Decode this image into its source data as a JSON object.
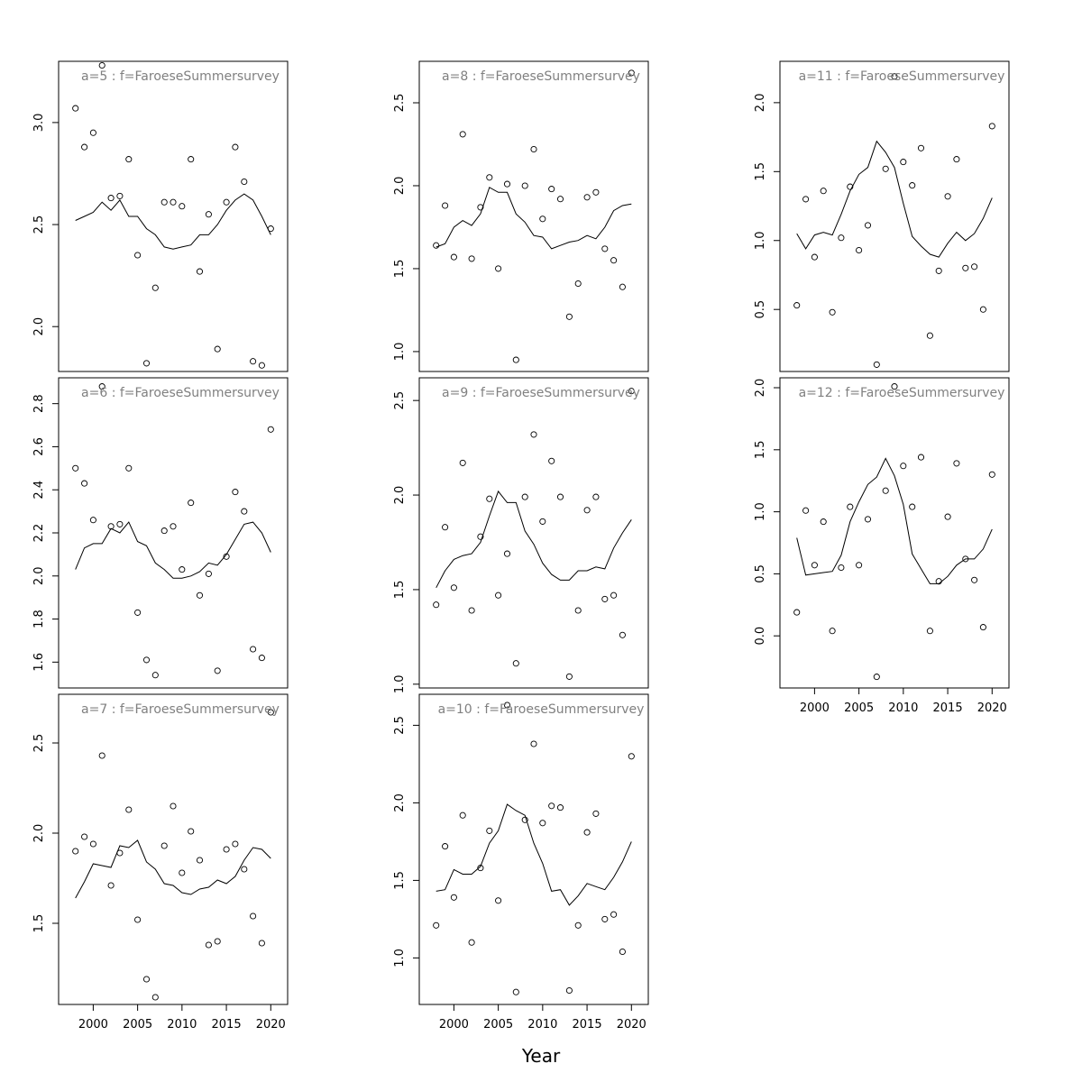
{
  "xlabel": "Year",
  "chart_data": [
    {
      "type": "scatter",
      "title": "a=5 : f=FaroeseSummersurvey",
      "yticks": [
        2.0,
        2.5,
        3.0
      ],
      "ylim": [
        1.78,
        3.3
      ],
      "x": [
        1998,
        1999,
        2000,
        2001,
        2002,
        2003,
        2004,
        2005,
        2006,
        2007,
        2008,
        2009,
        2010,
        2011,
        2012,
        2013,
        2014,
        2015,
        2016,
        2017,
        2018,
        2019,
        2020
      ],
      "observed": [
        3.07,
        2.88,
        2.95,
        3.28,
        2.63,
        2.64,
        2.82,
        2.35,
        1.82,
        2.19,
        2.61,
        2.61,
        2.59,
        2.82,
        2.27,
        2.55,
        1.89,
        2.61,
        2.88,
        2.71,
        1.83,
        1.81,
        2.48
      ],
      "fitted": [
        2.52,
        2.54,
        2.56,
        2.61,
        2.57,
        2.62,
        2.54,
        2.54,
        2.48,
        2.45,
        2.39,
        2.38,
        2.39,
        2.4,
        2.45,
        2.45,
        2.5,
        2.57,
        2.62,
        2.65,
        2.62,
        2.54,
        2.45
      ]
    },
    {
      "type": "scatter",
      "title": "a=6 : f=FaroeseSummersurvey",
      "yticks": [
        1.6,
        1.8,
        2.0,
        2.2,
        2.4,
        2.6,
        2.8
      ],
      "ylim": [
        1.48,
        2.92
      ],
      "x": [
        1998,
        1999,
        2000,
        2001,
        2002,
        2003,
        2004,
        2005,
        2006,
        2007,
        2008,
        2009,
        2010,
        2011,
        2012,
        2013,
        2014,
        2015,
        2016,
        2017,
        2018,
        2019,
        2020
      ],
      "observed": [
        2.5,
        2.43,
        2.26,
        2.88,
        2.23,
        2.24,
        2.5,
        1.83,
        1.61,
        1.54,
        2.21,
        2.23,
        2.03,
        2.34,
        1.91,
        2.01,
        1.56,
        2.09,
        2.39,
        2.3,
        1.66,
        1.62,
        2.68
      ],
      "fitted": [
        2.03,
        2.13,
        2.15,
        2.15,
        2.22,
        2.2,
        2.25,
        2.16,
        2.14,
        2.06,
        2.03,
        1.99,
        1.99,
        2.0,
        2.02,
        2.06,
        2.05,
        2.1,
        2.17,
        2.24,
        2.25,
        2.2,
        2.11
      ]
    },
    {
      "type": "scatter",
      "title": "a=7 : f=FaroeseSummersurvey",
      "yticks": [
        1.5,
        2.0,
        2.5
      ],
      "ylim": [
        1.05,
        2.77
      ],
      "x": [
        1998,
        1999,
        2000,
        2001,
        2002,
        2003,
        2004,
        2005,
        2006,
        2007,
        2008,
        2009,
        2010,
        2011,
        2012,
        2013,
        2014,
        2015,
        2016,
        2017,
        2018,
        2019,
        2020
      ],
      "observed": [
        1.9,
        1.98,
        1.94,
        2.43,
        1.71,
        1.89,
        2.13,
        1.52,
        1.19,
        1.09,
        1.93,
        2.15,
        1.78,
        2.01,
        1.85,
        1.38,
        1.4,
        1.91,
        1.94,
        1.8,
        1.54,
        1.39,
        2.67
      ],
      "fitted": [
        1.64,
        1.73,
        1.83,
        1.82,
        1.81,
        1.93,
        1.92,
        1.96,
        1.84,
        1.8,
        1.72,
        1.71,
        1.67,
        1.66,
        1.69,
        1.7,
        1.74,
        1.72,
        1.76,
        1.85,
        1.92,
        1.91,
        1.86
      ]
    },
    {
      "type": "scatter",
      "title": "a=8 : f=FaroeseSummersurvey",
      "yticks": [
        1.0,
        1.5,
        2.0,
        2.5
      ],
      "ylim": [
        0.88,
        2.75
      ],
      "x": [
        1998,
        1999,
        2000,
        2001,
        2002,
        2003,
        2004,
        2005,
        2006,
        2007,
        2008,
        2009,
        2010,
        2011,
        2012,
        2013,
        2014,
        2015,
        2016,
        2017,
        2018,
        2019,
        2020
      ],
      "observed": [
        1.64,
        1.88,
        1.57,
        2.31,
        1.56,
        1.87,
        2.05,
        1.5,
        2.01,
        0.95,
        2.0,
        2.22,
        1.8,
        1.98,
        1.92,
        1.21,
        1.41,
        1.93,
        1.96,
        1.62,
        1.55,
        1.39,
        2.68
      ],
      "fitted": [
        1.63,
        1.65,
        1.75,
        1.79,
        1.76,
        1.83,
        1.99,
        1.96,
        1.96,
        1.83,
        1.78,
        1.7,
        1.69,
        1.62,
        1.64,
        1.66,
        1.67,
        1.7,
        1.68,
        1.75,
        1.85,
        1.88,
        1.89
      ]
    },
    {
      "type": "scatter",
      "title": "a=9 : f=FaroeseSummersurvey",
      "yticks": [
        1.0,
        1.5,
        2.0,
        2.5
      ],
      "ylim": [
        0.98,
        2.62
      ],
      "x": [
        1998,
        1999,
        2000,
        2001,
        2002,
        2003,
        2004,
        2005,
        2006,
        2007,
        2008,
        2009,
        2010,
        2011,
        2012,
        2013,
        2014,
        2015,
        2016,
        2017,
        2018,
        2019,
        2020
      ],
      "observed": [
        1.42,
        1.83,
        1.51,
        2.17,
        1.39,
        1.78,
        1.98,
        1.47,
        1.69,
        1.11,
        1.99,
        2.32,
        1.86,
        2.18,
        1.99,
        1.04,
        1.39,
        1.92,
        1.99,
        1.45,
        1.47,
        1.26,
        2.55
      ],
      "fitted": [
        1.51,
        1.6,
        1.66,
        1.68,
        1.69,
        1.75,
        1.89,
        2.02,
        1.96,
        1.96,
        1.81,
        1.74,
        1.64,
        1.58,
        1.55,
        1.55,
        1.6,
        1.6,
        1.62,
        1.61,
        1.72,
        1.8,
        1.87
      ]
    },
    {
      "type": "scatter",
      "title": "a=10 : f=FaroeseSummersurvey",
      "yticks": [
        1.0,
        1.5,
        2.0,
        2.5
      ],
      "ylim": [
        0.7,
        2.7
      ],
      "x": [
        1998,
        1999,
        2000,
        2001,
        2002,
        2003,
        2004,
        2005,
        2006,
        2007,
        2008,
        2009,
        2010,
        2011,
        2012,
        2013,
        2014,
        2015,
        2016,
        2017,
        2018,
        2019,
        2020
      ],
      "observed": [
        1.21,
        1.72,
        1.39,
        1.92,
        1.1,
        1.58,
        1.82,
        1.37,
        2.63,
        0.78,
        1.89,
        2.38,
        1.87,
        1.98,
        1.97,
        0.79,
        1.21,
        1.81,
        1.93,
        1.25,
        1.28,
        1.04,
        2.3
      ],
      "fitted": [
        1.43,
        1.44,
        1.57,
        1.54,
        1.54,
        1.59,
        1.74,
        1.82,
        1.99,
        1.95,
        1.92,
        1.74,
        1.61,
        1.43,
        1.44,
        1.34,
        1.4,
        1.48,
        1.46,
        1.44,
        1.52,
        1.62,
        1.75
      ]
    },
    {
      "type": "scatter",
      "title": "a=11 : f=FaroeseSummersurvey",
      "yticks": [
        0.5,
        1.0,
        1.5,
        2.0
      ],
      "ylim": [
        0.05,
        2.3
      ],
      "x": [
        1998,
        1999,
        2000,
        2001,
        2002,
        2003,
        2004,
        2005,
        2006,
        2007,
        2008,
        2009,
        2010,
        2011,
        2012,
        2013,
        2014,
        2015,
        2016,
        2017,
        2018,
        2019,
        2020
      ],
      "observed": [
        0.53,
        1.3,
        0.88,
        1.36,
        0.48,
        1.02,
        1.39,
        0.93,
        1.11,
        0.1,
        1.52,
        2.19,
        1.57,
        1.4,
        1.67,
        0.31,
        0.78,
        1.32,
        1.59,
        0.8,
        0.81,
        0.5,
        1.83
      ],
      "fitted": [
        1.05,
        0.94,
        1.04,
        1.06,
        1.04,
        1.19,
        1.36,
        1.48,
        1.53,
        1.72,
        1.64,
        1.53,
        1.27,
        1.03,
        0.96,
        0.9,
        0.88,
        0.98,
        1.06,
        1.0,
        1.05,
        1.16,
        1.31
      ]
    },
    {
      "type": "scatter",
      "title": "a=12 : f=FaroeseSummersurvey",
      "yticks": [
        0.0,
        0.5,
        1.0,
        1.5,
        2.0
      ],
      "ylim": [
        -0.42,
        2.08
      ],
      "x": [
        1998,
        1999,
        2000,
        2001,
        2002,
        2003,
        2004,
        2005,
        2006,
        2007,
        2008,
        2009,
        2010,
        2011,
        2012,
        2013,
        2014,
        2015,
        2016,
        2017,
        2018,
        2019,
        2020
      ],
      "observed": [
        0.19,
        1.01,
        0.57,
        0.92,
        0.04,
        0.55,
        1.04,
        0.57,
        0.94,
        -0.33,
        1.17,
        2.01,
        1.37,
        1.04,
        1.44,
        0.04,
        0.44,
        0.96,
        1.39,
        0.62,
        0.45,
        0.07,
        1.3
      ],
      "fitted": [
        0.79,
        0.49,
        0.5,
        0.51,
        0.52,
        0.65,
        0.92,
        1.08,
        1.22,
        1.28,
        1.43,
        1.29,
        1.06,
        0.66,
        0.54,
        0.42,
        0.42,
        0.48,
        0.57,
        0.62,
        0.62,
        0.7,
        0.86
      ]
    }
  ],
  "xticks": [
    2000,
    2005,
    2010,
    2015,
    2020
  ]
}
